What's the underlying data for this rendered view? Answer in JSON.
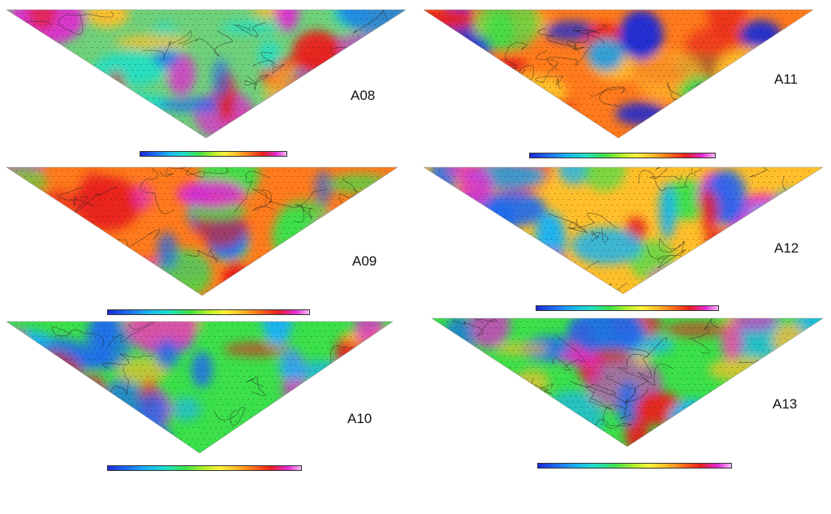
{
  "sections": [
    {
      "label": "A08",
      "base": "#6fd17a",
      "blobs": [
        "#e8201c",
        "#e22ad2",
        "#1e6bf0",
        "#ffbf2a",
        "#20e0c8"
      ]
    },
    {
      "label": "A09",
      "base": "#ff7a1c",
      "blobs": [
        "#1e6bf0",
        "#3be04a",
        "#e8201c",
        "#e22ad2",
        "#ffbf2a"
      ]
    },
    {
      "label": "A10",
      "base": "#3be04a",
      "blobs": [
        "#e8201c",
        "#1e6bf0",
        "#ffbf2a",
        "#19b4f2",
        "#e22ad2"
      ]
    },
    {
      "label": "A11",
      "base": "#ff7a1c",
      "blobs": [
        "#1a2bd8",
        "#3be04a",
        "#e8201c",
        "#19b4f2",
        "#ffbf2a"
      ]
    },
    {
      "label": "A12",
      "base": "#ffbf2a",
      "blobs": [
        "#1e6bf0",
        "#e8201c",
        "#e22ad2",
        "#3be04a",
        "#19b4f2"
      ]
    },
    {
      "label": "A13",
      "base": "#3be04a",
      "blobs": [
        "#1e6bf0",
        "#e8201c",
        "#e22ad2",
        "#ffbf2a",
        "#19b4f2"
      ]
    }
  ]
}
